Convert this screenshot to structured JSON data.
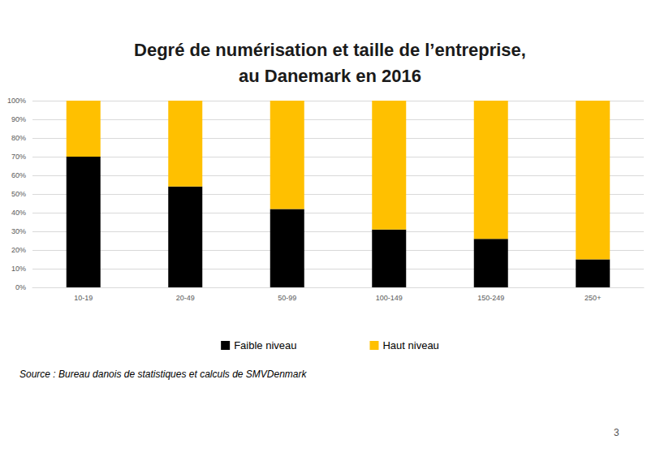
{
  "chart_data": {
    "type": "bar",
    "title": "Degré de numérisation et taille de l’entreprise,\nau Danemark en 2016",
    "categories": [
      "10-19",
      "20-49",
      "50-99",
      "100-149",
      "150-249",
      "250+"
    ],
    "series": [
      {
        "name": "Faible niveau",
        "color": "#000000",
        "values": [
          70,
          54,
          42,
          31,
          26,
          15
        ]
      },
      {
        "name": "Haut niveau",
        "color": "#FFC000",
        "values": [
          30,
          46,
          58,
          69,
          74,
          85
        ]
      }
    ],
    "ylim": [
      0,
      100
    ],
    "yticks": [
      {
        "value": 0,
        "label": "0%"
      },
      {
        "value": 10,
        "label": "10%"
      },
      {
        "value": 20,
        "label": "20%"
      },
      {
        "value": 30,
        "label": "30%"
      },
      {
        "value": 40,
        "label": "40%"
      },
      {
        "value": 50,
        "label": "50%"
      },
      {
        "value": 60,
        "label": "60%"
      },
      {
        "value": 70,
        "label": "70%"
      },
      {
        "value": 80,
        "label": "80%"
      },
      {
        "value": 90,
        "label": "90%"
      },
      {
        "value": 100,
        "label": "100%"
      }
    ],
    "stacked": true,
    "grid": true,
    "legend": "bottom",
    "annotations": [
      "Source : Bureau danois de statistiques et calculs de SMVDenmark",
      "3"
    ]
  }
}
